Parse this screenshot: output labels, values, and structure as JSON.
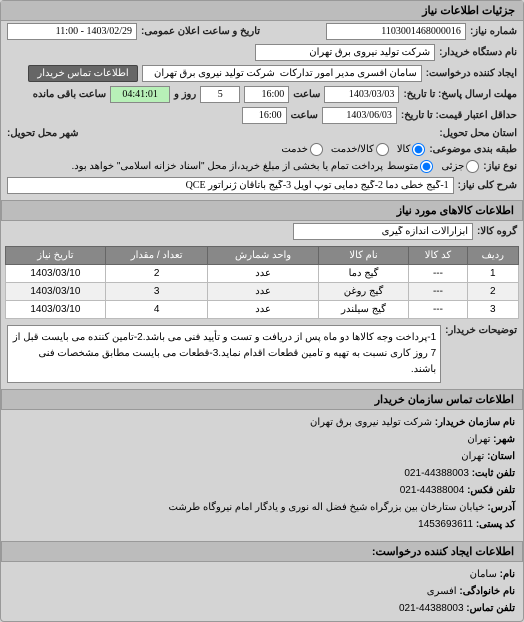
{
  "header": {
    "title": "جزئیات اطلاعات نیاز"
  },
  "fields": {
    "request_no_label": "شماره نیاز:",
    "request_no": "1103001468000016",
    "announce_label": "تاریخ و ساعت اعلان عمومی:",
    "announce_value": "1403/02/29 - 11:00",
    "buyer_org_label": "نام دستگاه خریدار:",
    "buyer_org": "شرکت تولید نیروی برق تهران",
    "requester_label": "ایجاد کننده درخواست:",
    "requester": "سامان افسری مدیر امور تدارکات  شرکت تولید نیروی برق تهران",
    "buyer_contact_btn": "اطلاعات تماس خریدار",
    "deadline_label": "مهلت ارسال پاسخ: تا تاریخ:",
    "deadline_date": "1403/03/03",
    "time_label": "ساعت",
    "deadline_time": "16:00",
    "days_label": "روز و",
    "days": "5",
    "remain_label": "ساعت باقی مانده",
    "remain_time": "04:41:01",
    "validity_label": "حداقل اعتبار قیمت: تا تاریخ:",
    "validity_date": "1403/06/03",
    "validity_time": "16:00",
    "delivery_state_label": "استان محل تحویل:",
    "delivery_city_label": "شهر محل تحویل:",
    "package_label": "طبقه بندی موضوعی:",
    "radio_goods": "کالا",
    "radio_service": "کالا/خدمت",
    "radio_serv": "خدمت",
    "type_label": "نوع نیاز:",
    "radio_small": "جزئی",
    "radio_medium": "متوسط",
    "note_text": "پرداخت تمام یا بخشی از مبلغ خرید،از محل \"اسناد خزانه اسلامی\" خواهد بود.",
    "summary_label": "شرح کلی نیاز:",
    "summary": "1-گیج خطی دما 2-گیج دمایی توپ اویل 3-گیج باتاقان ژنراتور QCE",
    "goods_section": "اطلاعات کالاهای مورد نیاز",
    "group_label": "گروه کالا:",
    "group": "ابزارآلات اندازه گیری",
    "desc_label": "توضیحات خریدار:",
    "desc": "1-پرداخت وجه کالاها دو ماه پس از دریافت و تست و تأیید فنی می باشد.2-تامین کننده می بایست قبل از 7 روز کاری نسبت به تهیه و تامین قطعات اقدام نماید.3-قطعات می بایست مطابق مشخصات فنی باشند.",
    "contact_section": "اطلاعات تماس سازمان خریدار",
    "c_org_label": "نام سازمان خریدار:",
    "c_org": "شرکت تولید نیروی برق تهران",
    "c_city_label": "شهر:",
    "c_city": "تهران",
    "c_state_label": "استان:",
    "c_state": "تهران",
    "c_phone_label": "تلفن ثابت:",
    "c_phone": "44388003-021",
    "c_fax_label": "تلفن فکس:",
    "c_fax": "44388004-021",
    "c_addr_label": "آدرس:",
    "c_addr": "خیابان ستارخان بین بزرگراه شیخ فضل اله نوری و یادگار امام نیروگاه طرشت",
    "c_post_label": "کد پستی:",
    "c_post": "1453693611",
    "creator_section": "اطلاعات ایجاد کننده درخواست:",
    "cr_name_label": "نام:",
    "cr_name": "سامان",
    "cr_lname_label": "نام خانوادگی:",
    "cr_lname": "افسری",
    "cr_phone_label": "تلفن تماس:",
    "cr_phone": "44388003-021"
  },
  "table": {
    "headers": [
      "ردیف",
      "کد کالا",
      "نام کالا",
      "واحد شمارش",
      "تعداد / مقدار",
      "تاریخ نیاز"
    ],
    "rows": [
      [
        "1",
        "---",
        "گیج دما",
        "عدد",
        "2",
        "1403/03/10"
      ],
      [
        "2",
        "---",
        "گیج روغن",
        "عدد",
        "3",
        "1403/03/10"
      ],
      [
        "3",
        "---",
        "گیج سیلندر",
        "عدد",
        "4",
        "1403/03/10"
      ]
    ]
  },
  "colors": {
    "header_bg": "#bcbcbc",
    "panel_bg": "#d4d4d4",
    "th_bg": "#888888",
    "timer_bg": "#b8f0b8"
  }
}
